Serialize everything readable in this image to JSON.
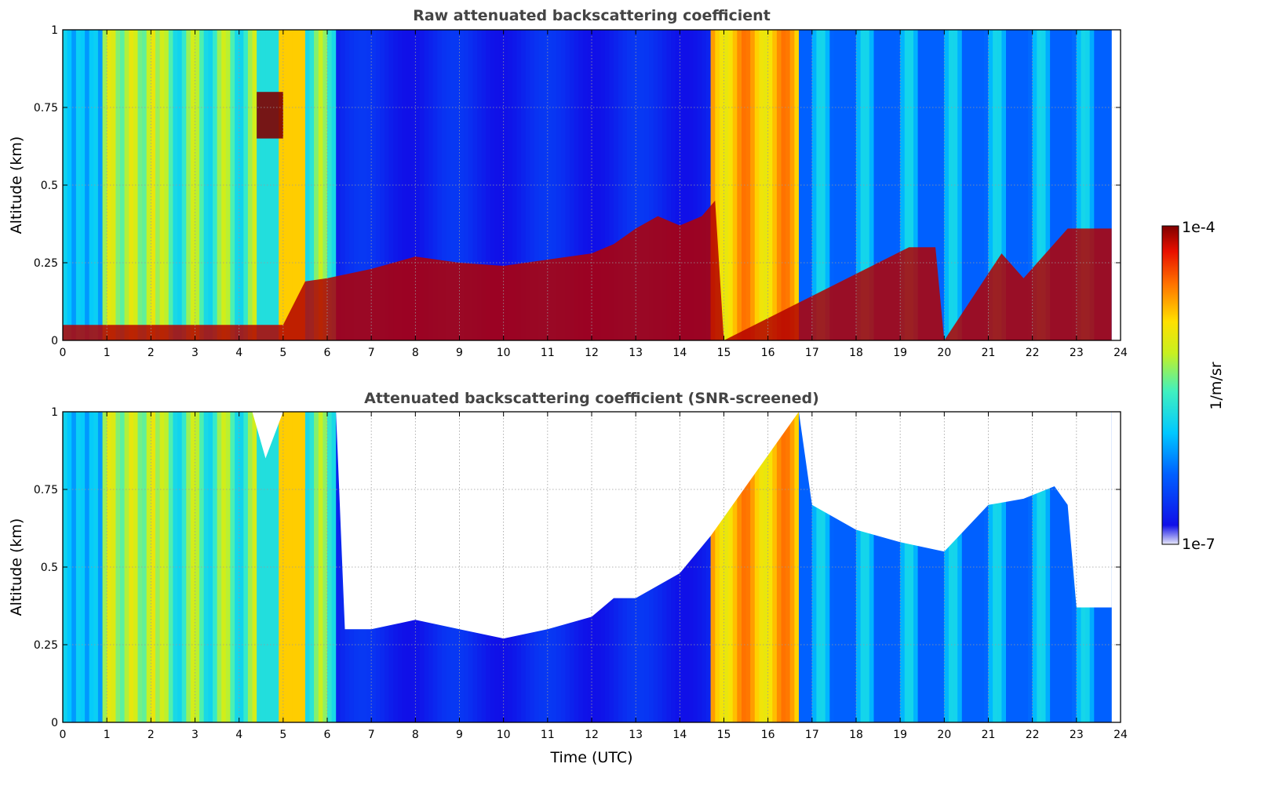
{
  "chart_data": [
    {
      "type": "heatmap",
      "title": "Raw attenuated backscattering coefficient",
      "xlabel": "",
      "ylabel": "Altitude (km)",
      "xlim": [
        0,
        24
      ],
      "ylim": [
        0,
        1
      ],
      "x_ticks": [
        "0",
        "1",
        "2",
        "3",
        "4",
        "5",
        "6",
        "7",
        "8",
        "9",
        "10",
        "11",
        "12",
        "13",
        "14",
        "15",
        "16",
        "17",
        "18",
        "19",
        "20",
        "21",
        "22",
        "23",
        "24"
      ],
      "y_ticks": [
        "0",
        "0.25",
        "0.5",
        "0.75",
        "1"
      ],
      "grid": true,
      "colormap": "jet",
      "colorscale": "log",
      "clim": [
        1e-07,
        0.0001
      ],
      "data_end_time": 23.8,
      "boundary_layer_top": {
        "time": [
          0,
          5,
          5.5,
          6,
          7,
          8,
          9,
          10,
          11,
          12,
          12.5,
          13,
          13.5,
          14,
          14.5,
          14.8,
          15,
          19.2,
          19.8,
          20,
          21.3,
          21.8,
          22.8,
          23.8
        ],
        "altitude": [
          0.05,
          0.05,
          0.19,
          0.2,
          0.23,
          0.27,
          0.25,
          0.24,
          0.26,
          0.28,
          0.31,
          0.36,
          0.4,
          0.37,
          0.4,
          0.45,
          0,
          0.3,
          0.3,
          0,
          0.28,
          0.2,
          0.36,
          0.36
        ]
      },
      "elevated_layer": {
        "time": [
          4.4,
          5.0
        ],
        "altitude": [
          0.65,
          0.8
        ]
      }
    },
    {
      "type": "heatmap",
      "title": "Attenuated backscattering coefficient (SNR-screened)",
      "xlabel": "Time (UTC)",
      "ylabel": "Altitude (km)",
      "xlim": [
        0,
        24
      ],
      "ylim": [
        0,
        1
      ],
      "x_ticks": [
        "0",
        "1",
        "2",
        "3",
        "4",
        "5",
        "6",
        "7",
        "8",
        "9",
        "10",
        "11",
        "12",
        "13",
        "14",
        "15",
        "16",
        "17",
        "18",
        "19",
        "20",
        "21",
        "22",
        "23",
        "24"
      ],
      "y_ticks": [
        "0",
        "0.25",
        "0.5",
        "0.75",
        "1"
      ],
      "grid": true,
      "colormap": "jet",
      "colorscale": "log",
      "clim": [
        1e-07,
        0.0001
      ],
      "data_end_time": 23.8,
      "screened_top": {
        "time": [
          0,
          4.3,
          4.6,
          5.0,
          6.2,
          6.4,
          7,
          8,
          9,
          10,
          11,
          12,
          12.5,
          13,
          14,
          14.7,
          16.7,
          17,
          18,
          19,
          20,
          21,
          21.8,
          22.5,
          22.8,
          23.0,
          23.8
        ],
        "altitude": [
          1,
          1,
          0.85,
          1,
          1,
          0.3,
          0.3,
          0.33,
          0.3,
          0.27,
          0.3,
          0.34,
          0.4,
          0.4,
          0.48,
          0.6,
          1,
          0.7,
          0.62,
          0.58,
          0.55,
          0.7,
          0.72,
          0.76,
          0.7,
          0.37,
          0.37
        ]
      }
    }
  ],
  "colorbar": {
    "unit_label": "1/m/sr",
    "max_label": "1e-4",
    "min_label": "1e-7"
  }
}
